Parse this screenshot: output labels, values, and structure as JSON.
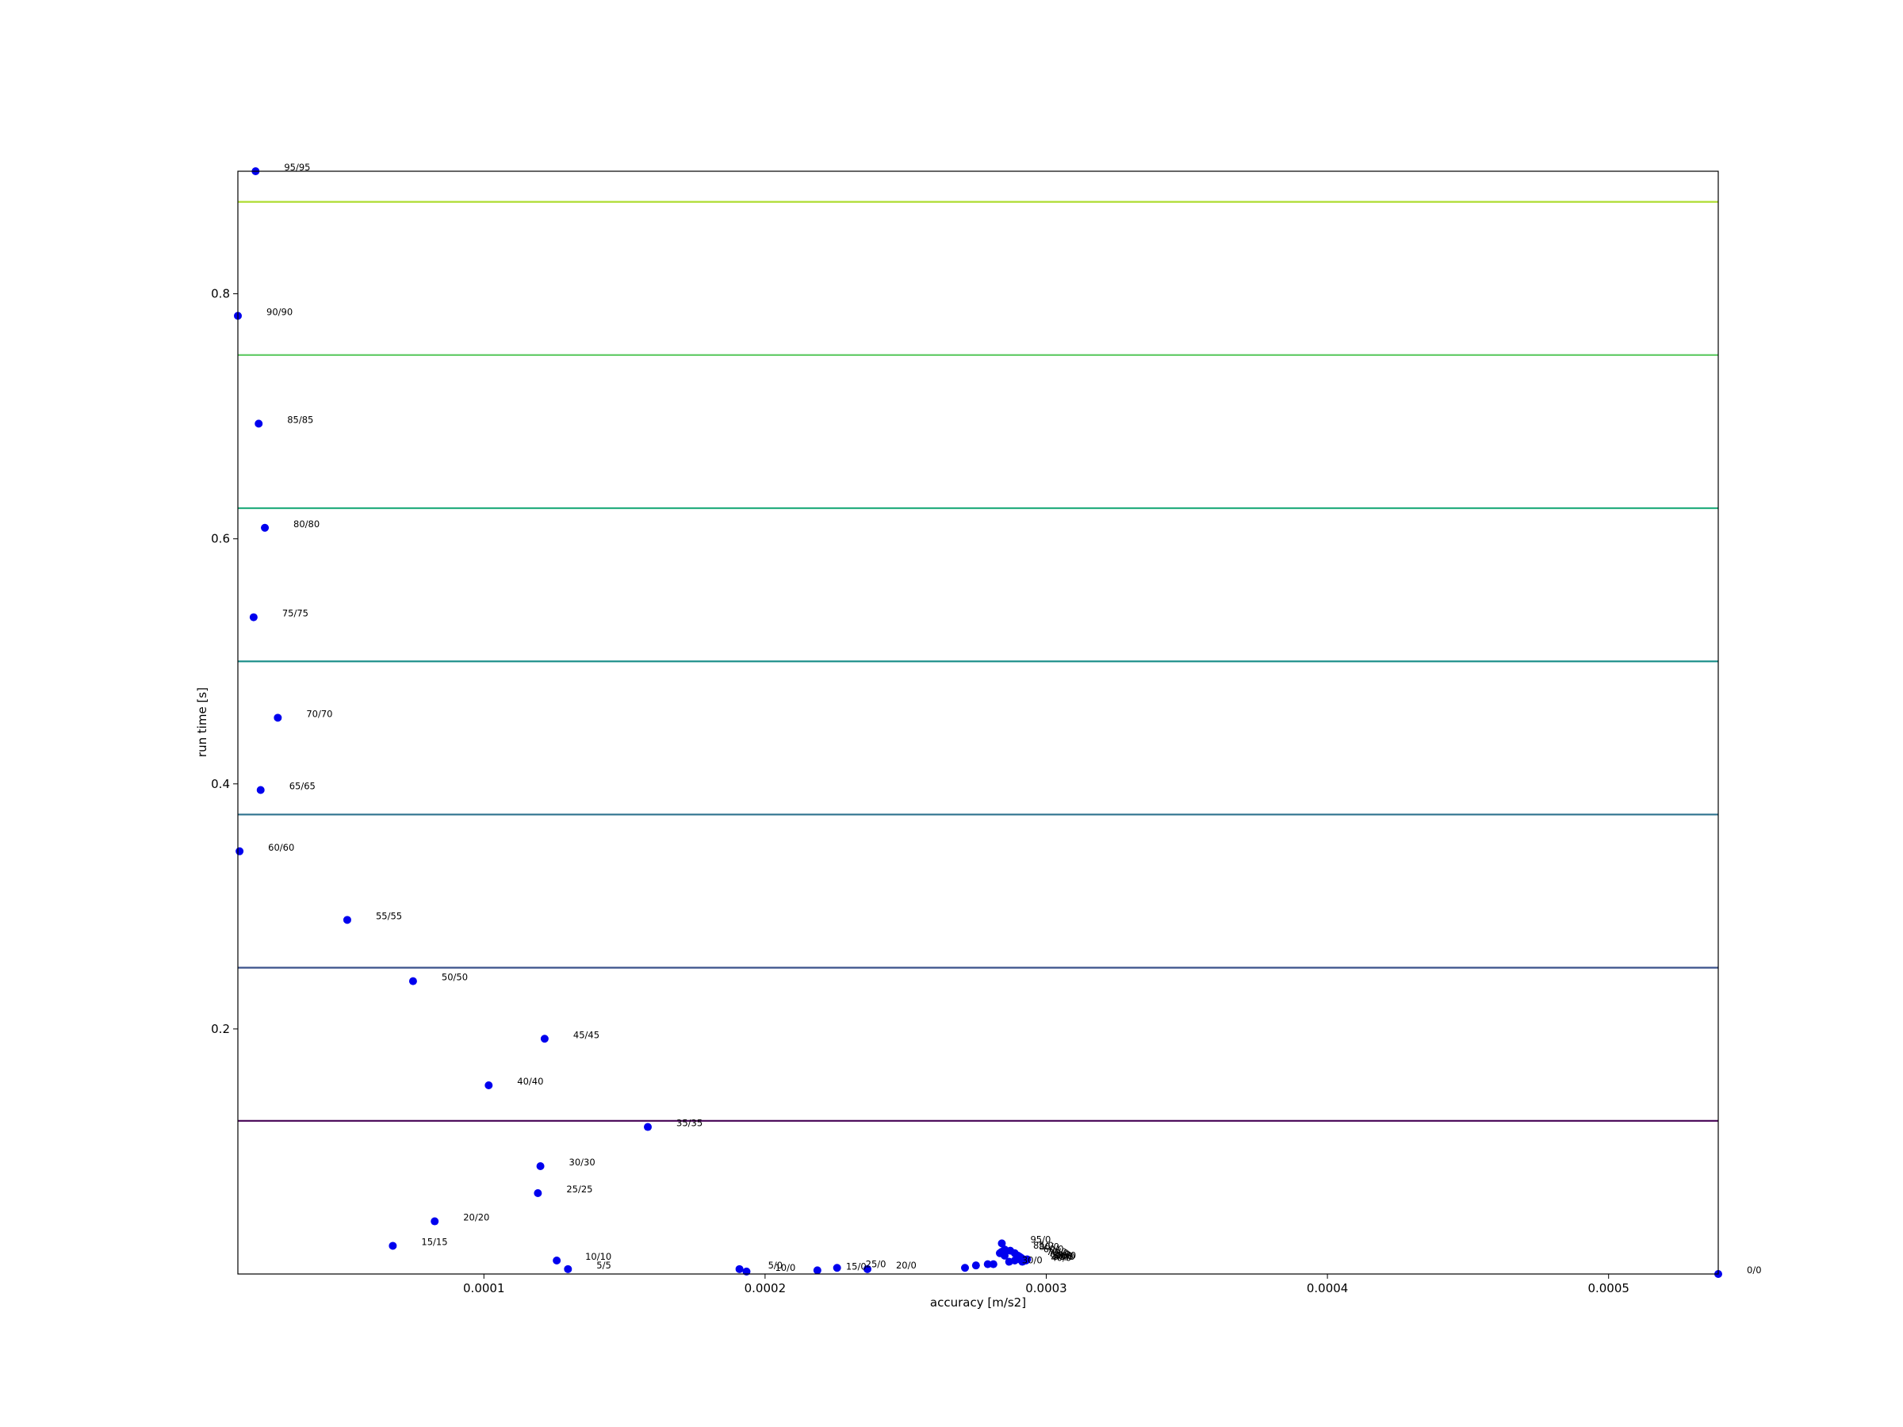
{
  "chart_data": {
    "type": "scatter",
    "xlabel": "accuracy [m/s2]",
    "ylabel": "run time [s]",
    "xlim": [
      1.25e-05,
      0.000539
    ],
    "ylim": [
      0,
      0.9
    ],
    "x_ticks": [
      0.0001,
      0.0002,
      0.0003,
      0.0004,
      0.0005
    ],
    "x_tick_labels": [
      "0.0001",
      "0.0002",
      "0.0003",
      "0.0004",
      "0.0005"
    ],
    "y_ticks": [
      0.2,
      0.4,
      0.6,
      0.8
    ],
    "y_tick_labels": [
      "0.2",
      "0.4",
      "0.6",
      "0.8"
    ],
    "grid": false,
    "point_color": "#0000ee",
    "contour_levels": [
      {
        "y": 0.125,
        "color": "#440154"
      },
      {
        "y": 0.25,
        "color": "#3b528b"
      },
      {
        "y": 0.375,
        "color": "#2c728e"
      },
      {
        "y": 0.5,
        "color": "#21918c"
      },
      {
        "y": 0.625,
        "color": "#28ae80"
      },
      {
        "y": 0.75,
        "color": "#5ec962"
      },
      {
        "y": 0.875,
        "color": "#addc30"
      }
    ],
    "points": [
      {
        "label": "95/95",
        "x": 1.88e-05,
        "y": 0.9
      },
      {
        "label": "90/90",
        "x": 1.25e-05,
        "y": 0.782
      },
      {
        "label": "85/85",
        "x": 1.99e-05,
        "y": 0.694
      },
      {
        "label": "80/80",
        "x": 2.21e-05,
        "y": 0.609
      },
      {
        "label": "75/75",
        "x": 1.81e-05,
        "y": 0.536
      },
      {
        "label": "70/70",
        "x": 2.67e-05,
        "y": 0.454
      },
      {
        "label": "65/65",
        "x": 2.06e-05,
        "y": 0.395
      },
      {
        "label": "60/60",
        "x": 1.31e-05,
        "y": 0.345
      },
      {
        "label": "55/55",
        "x": 5.14e-05,
        "y": 0.289
      },
      {
        "label": "50/50",
        "x": 7.48e-05,
        "y": 0.239
      },
      {
        "label": "45/45",
        "x": 0.0001216,
        "y": 0.192
      },
      {
        "label": "40/40",
        "x": 0.0001017,
        "y": 0.154
      },
      {
        "label": "35/35",
        "x": 0.0001583,
        "y": 0.12
      },
      {
        "label": "30/30",
        "x": 0.0001201,
        "y": 0.088
      },
      {
        "label": "25/25",
        "x": 0.0001192,
        "y": 0.066
      },
      {
        "label": "20/20",
        "x": 8.25e-05,
        "y": 0.043
      },
      {
        "label": "15/15",
        "x": 6.76e-05,
        "y": 0.023
      },
      {
        "label": "10/10",
        "x": 0.0001259,
        "y": 0.011
      },
      {
        "label": "5/5",
        "x": 0.0001299,
        "y": 0.004
      },
      {
        "label": "5/0",
        "x": 0.0001909,
        "y": 0.004
      },
      {
        "label": "10/0",
        "x": 0.0001934,
        "y": 0.002
      },
      {
        "label": "15/0",
        "x": 0.0002186,
        "y": 0.003
      },
      {
        "label": "25/0",
        "x": 0.0002256,
        "y": 0.005
      },
      {
        "label": "20/0",
        "x": 0.0002364,
        "y": 0.004
      },
      {
        "label": "",
        "x": 0.0002711,
        "y": 0.005
      },
      {
        "label": "",
        "x": 0.000275,
        "y": 0.007
      },
      {
        "label": "",
        "x": 0.0002792,
        "y": 0.008
      },
      {
        "label": "30/0",
        "x": 0.0002812,
        "y": 0.008
      },
      {
        "label": "",
        "x": 0.0002835,
        "y": 0.017
      },
      {
        "label": "",
        "x": 0.0002841,
        "y": 0.018
      },
      {
        "label": "",
        "x": 0.0002852,
        "y": 0.015
      },
      {
        "label": "",
        "x": 0.0002868,
        "y": 0.01
      },
      {
        "label": "",
        "x": 0.0002888,
        "y": 0.011
      },
      {
        "label": "",
        "x": 0.0002905,
        "y": 0.012
      },
      {
        "label": "40/0",
        "x": 0.0002915,
        "y": 0.01
      },
      {
        "label": "95/0",
        "x": 0.0002842,
        "y": 0.025
      },
      {
        "label": "85/0",
        "x": 0.0002852,
        "y": 0.02
      },
      {
        "label": "80/0",
        "x": 0.0002872,
        "y": 0.019
      },
      {
        "label": "60/0",
        "x": 0.0002888,
        "y": 0.017
      },
      {
        "label": "70/0",
        "x": 0.0002899,
        "y": 0.015
      },
      {
        "label": "75/0",
        "x": 0.0002906,
        "y": 0.014
      },
      {
        "label": "65/0",
        "x": 0.0002912,
        "y": 0.013
      },
      {
        "label": "55/0",
        "x": 0.0002918,
        "y": 0.012
      },
      {
        "label": "50/0",
        "x": 0.0002922,
        "y": 0.011
      },
      {
        "label": "45/0",
        "x": 0.0002928,
        "y": 0.011
      },
      {
        "label": "90/0",
        "x": 0.0002932,
        "y": 0.012
      },
      {
        "label": "0/0",
        "x": 0.000539,
        "y": 0.0
      }
    ]
  }
}
